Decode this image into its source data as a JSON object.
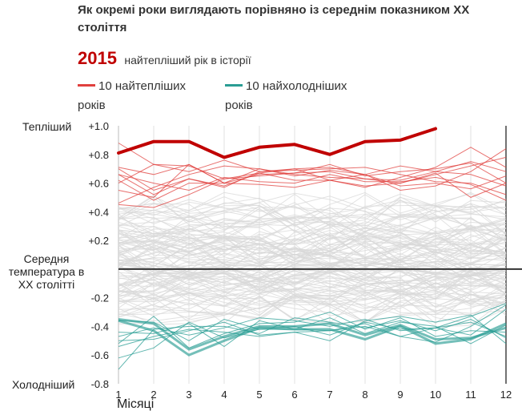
{
  "title": "Як окремі роки виглядають порівняно із середнім показником ХХ століття",
  "highlight": {
    "year": "2015",
    "text": "найтепліший рік в історії"
  },
  "legend": {
    "warm": {
      "label": "10 найтепліших років",
      "color": "#e0403e"
    },
    "cold": {
      "label": "10 найхолодніших років",
      "color": "#2a9d94"
    }
  },
  "labels": {
    "warm": "Тепліший",
    "cold": "Холодніший",
    "average": "Середня температура в ХХ столітті",
    "x_axis": "Місяці"
  },
  "colors": {
    "highlight": "#c00000",
    "warm": "#e0403e",
    "cold": "#2a9d94",
    "other": "#d8d8d8",
    "baseline": "#333333"
  },
  "chart_data": {
    "type": "line",
    "x": [
      1,
      2,
      3,
      4,
      5,
      6,
      7,
      8,
      9,
      10,
      11,
      12
    ],
    "y_tick_labels": [
      "+1.0",
      "+0.8",
      "+0.6",
      "+0.4",
      "+0.2",
      "-0.2",
      "-0.4",
      "-0.6",
      "-0.8"
    ],
    "y_ticks": [
      1.0,
      0.8,
      0.6,
      0.4,
      0.2,
      -0.2,
      -0.4,
      -0.6,
      -0.8
    ],
    "x_tick_labels": [
      "1",
      "2",
      "3",
      "4",
      "5",
      "6",
      "7",
      "8",
      "9",
      "10",
      "11",
      "12"
    ],
    "ylim": [
      -0.8,
      1.0
    ],
    "xlim": [
      1,
      12
    ],
    "baseline": 0,
    "highlight_series": {
      "name": "2015",
      "values": [
        0.81,
        0.89,
        0.89,
        0.78,
        0.85,
        0.87,
        0.8,
        0.89,
        0.9,
        0.98
      ]
    },
    "warm_series": [
      [
        0.7,
        0.55,
        0.63,
        0.57,
        0.68,
        0.7,
        0.62,
        0.66,
        0.72,
        0.68,
        0.75,
        0.68
      ],
      [
        0.6,
        0.73,
        0.72,
        0.63,
        0.65,
        0.67,
        0.68,
        0.63,
        0.62,
        0.68,
        0.66,
        0.58
      ],
      [
        0.46,
        0.57,
        0.66,
        0.72,
        0.7,
        0.66,
        0.64,
        0.63,
        0.6,
        0.66,
        0.72,
        0.78
      ],
      [
        0.88,
        0.73,
        0.68,
        0.76,
        0.68,
        0.69,
        0.7,
        0.71,
        0.66,
        0.61,
        0.6,
        0.52
      ],
      [
        0.66,
        0.6,
        0.55,
        0.64,
        0.61,
        0.6,
        0.66,
        0.61,
        0.61,
        0.64,
        0.59,
        0.48
      ],
      [
        0.62,
        0.48,
        0.6,
        0.6,
        0.59,
        0.57,
        0.62,
        0.58,
        0.6,
        0.67,
        0.5,
        0.6
      ],
      [
        0.55,
        0.5,
        0.73,
        0.6,
        0.7,
        0.65,
        0.69,
        0.66,
        0.55,
        0.58,
        0.68,
        0.84
      ],
      [
        0.45,
        0.43,
        0.52,
        0.63,
        0.67,
        0.7,
        0.71,
        0.66,
        0.58,
        0.6,
        0.56,
        0.65
      ],
      [
        0.66,
        0.52,
        0.63,
        0.58,
        0.67,
        0.62,
        0.62,
        0.57,
        0.64,
        0.71,
        0.85,
        0.71
      ],
      [
        0.71,
        0.66,
        0.73,
        0.6,
        0.66,
        0.67,
        0.73,
        0.65,
        0.68,
        0.7,
        0.74,
        0.6
      ]
    ],
    "cold_series": [
      [
        -0.36,
        -0.43,
        -0.6,
        -0.5,
        -0.41,
        -0.42,
        -0.42,
        -0.49,
        -0.4,
        -0.52,
        -0.49,
        -0.38
      ],
      [
        -0.35,
        -0.38,
        -0.56,
        -0.47,
        -0.4,
        -0.4,
        -0.38,
        -0.46,
        -0.39,
        -0.49,
        -0.48,
        -0.41
      ],
      [
        -0.54,
        -0.47,
        -0.42,
        -0.44,
        -0.47,
        -0.44,
        -0.43,
        -0.4,
        -0.47,
        -0.51,
        -0.4,
        -0.25
      ],
      [
        -0.62,
        -0.55,
        -0.37,
        -0.48,
        -0.42,
        -0.4,
        -0.46,
        -0.37,
        -0.42,
        -0.41,
        -0.37,
        -0.47
      ],
      [
        -0.47,
        -0.41,
        -0.46,
        -0.41,
        -0.34,
        -0.36,
        -0.4,
        -0.35,
        -0.43,
        -0.41,
        -0.33,
        -0.24
      ],
      [
        -0.36,
        -0.37,
        -0.5,
        -0.35,
        -0.42,
        -0.42,
        -0.34,
        -0.45,
        -0.37,
        -0.4,
        -0.52,
        -0.39
      ],
      [
        -0.7,
        -0.42,
        -0.4,
        -0.4,
        -0.45,
        -0.34,
        -0.37,
        -0.41,
        -0.36,
        -0.43,
        -0.35,
        -0.48
      ],
      [
        -0.52,
        -0.33,
        -0.55,
        -0.45,
        -0.38,
        -0.37,
        -0.3,
        -0.42,
        -0.34,
        -0.47,
        -0.43,
        -0.44
      ],
      [
        -0.5,
        -0.49,
        -0.43,
        -0.37,
        -0.46,
        -0.44,
        -0.5,
        -0.36,
        -0.33,
        -0.37,
        -0.32,
        -0.52
      ],
      [
        -0.44,
        -0.45,
        -0.38,
        -0.54,
        -0.36,
        -0.42,
        -0.43,
        -0.38,
        -0.47,
        -0.41,
        -0.46,
        -0.28
      ]
    ],
    "highlight_color": "#c00000",
    "warm_color": "#e0403e",
    "cold_color": "#2a9d94",
    "other_color": "#d8d8d8"
  }
}
